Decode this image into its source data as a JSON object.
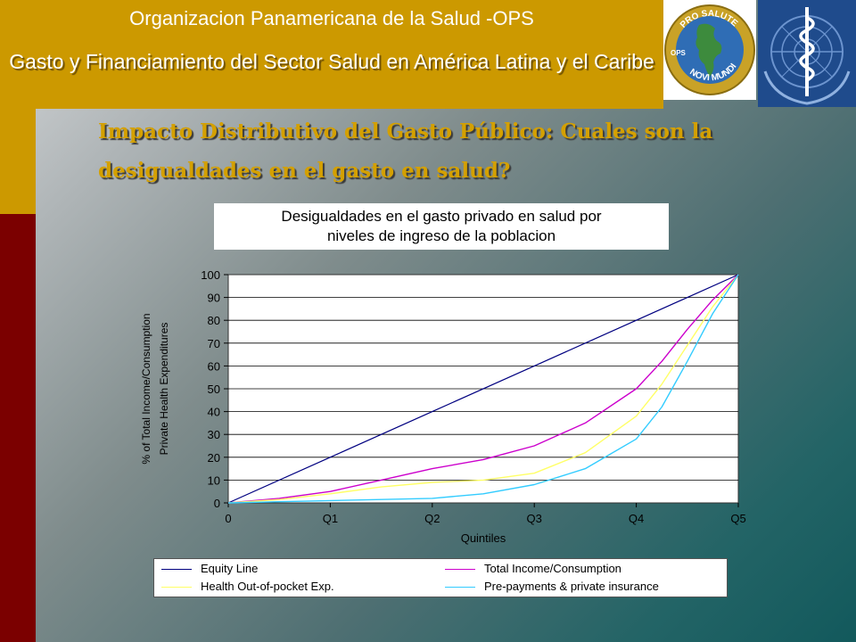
{
  "header": {
    "org": "Organizacion Panamericana de la Salud -OPS",
    "title": "Gasto y Financiamiento del Sector Salud en América Latina y el Caribe"
  },
  "slide_subtitle_line1": "Impacto Distributivo del Gasto Público: Cuales son la",
  "slide_subtitle_line2": "desigualdades en el gasto en salud?",
  "logos": {
    "paho_top": "PRO SALUTE",
    "paho_bottom": "NOVI MUNDI",
    "paho_side": "OPS"
  },
  "colors": {
    "header": "#cc9900",
    "left_bar": "#7b0000",
    "equity": "#000080",
    "income": "#cc00cc",
    "oop": "#ffff66",
    "prepay": "#33ccff"
  },
  "chart_data": {
    "type": "line",
    "title_line1": "Desigualdades en el gasto privado en salud por",
    "title_line2": "niveles de ingreso de la poblacion",
    "xlabel": "Quintiles",
    "ylabel_line1": "% of Total Income/Consumption",
    "ylabel_line2": "Private Health Expenditures",
    "x_ticks": [
      "0",
      "Q1",
      "Q2",
      "Q3",
      "Q4",
      "Q5"
    ],
    "y_ticks": [
      0,
      10,
      20,
      30,
      40,
      50,
      60,
      70,
      80,
      90,
      100
    ],
    "ylim": [
      0,
      100
    ],
    "xlim": [
      0,
      5
    ],
    "grid": "horizontal",
    "legend_position": "bottom",
    "series": [
      {
        "name": "Equity Line",
        "color": "#000080",
        "x": [
          0,
          1,
          2,
          3,
          4,
          5
        ],
        "values": [
          0,
          20,
          40,
          60,
          80,
          100
        ]
      },
      {
        "name": "Total Income/Consumption",
        "color": "#cc00cc",
        "x": [
          0,
          0.5,
          1,
          1.5,
          2,
          2.5,
          3,
          3.5,
          4,
          4.25,
          4.5,
          4.75,
          5
        ],
        "values": [
          0,
          2,
          5,
          10,
          15,
          19,
          25,
          35,
          50,
          62,
          76,
          89,
          100
        ]
      },
      {
        "name": "Health Out-of-pocket Exp.",
        "color": "#ffff66",
        "x": [
          0,
          0.5,
          1,
          1.5,
          2,
          2.5,
          3,
          3.5,
          4,
          4.25,
          4.5,
          4.75,
          5
        ],
        "values": [
          0,
          1.5,
          4,
          7,
          9,
          10,
          13,
          22,
          38,
          52,
          69,
          86,
          100
        ]
      },
      {
        "name": "Pre-payments & private insurance",
        "color": "#33ccff",
        "x": [
          0,
          0.5,
          1,
          1.5,
          2,
          2.5,
          3,
          3.5,
          4,
          4.25,
          4.5,
          4.75,
          5
        ],
        "values": [
          0,
          0.5,
          1,
          1.5,
          2,
          4,
          8,
          15,
          28,
          42,
          62,
          83,
          100
        ]
      }
    ]
  }
}
